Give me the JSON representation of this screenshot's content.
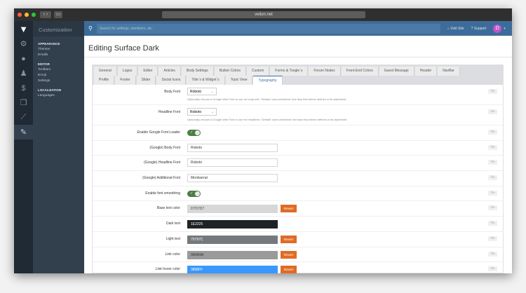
{
  "browser": {
    "url": "velion.net"
  },
  "sidebar": {
    "title": "Customization",
    "groups": [
      {
        "label": "APPEARANCE",
        "items": [
          "Themes",
          "Emails"
        ]
      },
      {
        "label": "EDITOR",
        "items": [
          "Toolbars",
          "Emoji",
          "Settings"
        ]
      },
      {
        "label": "LOCALIZATION",
        "items": [
          "Languages"
        ]
      }
    ]
  },
  "rail": {
    "icons": [
      "gears-icon",
      "chat-icon",
      "user-icon",
      "dollar-icon",
      "layers-icon",
      "chart-icon",
      "brush-icon"
    ]
  },
  "topbar": {
    "search_placeholder": "Search for settings, members, etc.",
    "visit_site": "Visit Site",
    "support": "Support",
    "avatar_letter": "D"
  },
  "page": {
    "title": "Editing Surface Dark"
  },
  "tabs": [
    "General",
    "Logos",
    "Editor",
    "Articles",
    "Body Settings",
    "Button Colors",
    "Custom",
    "Forms & Toogle`s",
    "Forum Nodes",
    "Front-End Colors",
    "Guest Message",
    "Header",
    "NavBar",
    "Profile",
    "Footer",
    "Slider",
    "Social Icons",
    "Title`s & Widget`s",
    "Topic View",
    "Typography"
  ],
  "active_tab": "Typography",
  "form": {
    "body_font": {
      "label": "Body Font",
      "value": "Roboto",
      "help": "Optionally choose a Google Web Font to use for body text. 'Default' uses whichever font face this theme defines in its stylesheet."
    },
    "headline_font": {
      "label": "Headline Font",
      "value": "Roboto",
      "help": "Optionally choose a Google Web Font to use for headlines. 'Default' uses whichever font face this theme defines in its stylesheet."
    },
    "google_loader": {
      "label": "Enable Google Font Loader",
      "on": true
    },
    "g_body": {
      "label": "(Google) Body Font",
      "value": "Roboto"
    },
    "g_headline": {
      "label": "(Google) Headline Font",
      "value": "Roboto"
    },
    "g_additional": {
      "label": "(Google) Additional Font",
      "value": "Montserrat"
    },
    "smoothing": {
      "label": "Enable font smoothing",
      "on": true
    },
    "colors": [
      {
        "label": "Base text color",
        "value": "D7D7D7",
        "color": "#D7D7D7",
        "text": "#444444",
        "revert": "Revert"
      },
      {
        "label": "Dark text",
        "value": "1E2225",
        "color": "#1E2225",
        "text": "#ffffff",
        "revert": ""
      },
      {
        "label": "Light text",
        "value": "75797C",
        "color": "#75797C",
        "text": "#ffffff",
        "revert": "Revert"
      },
      {
        "label": "Link color",
        "value": "9A9A9A",
        "color": "#9A9A9A",
        "text": "#333333",
        "revert": "Revert"
      },
      {
        "label": "Link hover color",
        "value": "3898FF",
        "color": "#3898FF",
        "text": "#ffffff",
        "revert": "Revert"
      }
    ]
  }
}
